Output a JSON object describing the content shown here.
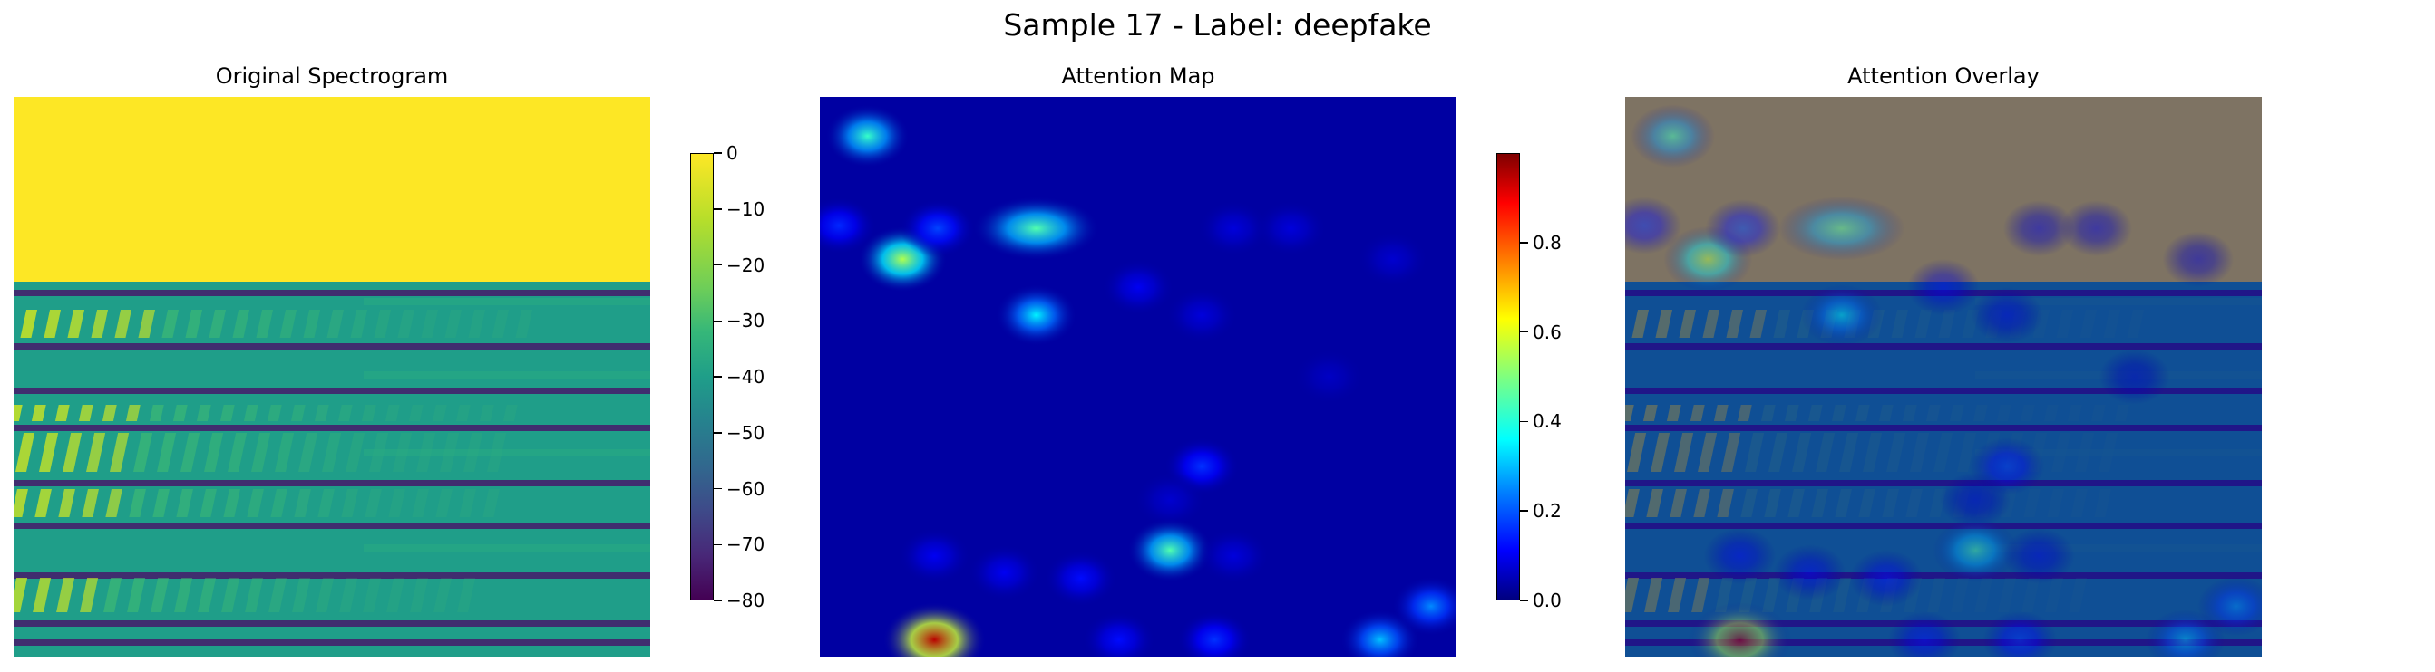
{
  "figure": {
    "title": "Sample 17 - Label: deepfake"
  },
  "panels": [
    {
      "id": "original",
      "title": "Original Spectrogram"
    },
    {
      "id": "attention",
      "title": "Attention Map"
    },
    {
      "id": "overlay",
      "title": "Attention Overlay"
    }
  ],
  "colorbars": {
    "spectrogram": {
      "colormap": "viridis",
      "range": [
        -80,
        0
      ],
      "ticks": [
        "0",
        "−10",
        "−20",
        "−30",
        "−40",
        "−50",
        "−60",
        "−70",
        "−80"
      ],
      "tick_values": [
        0,
        -10,
        -20,
        -30,
        -40,
        -50,
        -60,
        -70,
        -80
      ]
    },
    "attention": {
      "colormap": "jet",
      "range": [
        0,
        1
      ],
      "ticks": [
        "0.0",
        "0.2",
        "0.4",
        "0.6",
        "0.8"
      ],
      "tick_values": [
        0.0,
        0.2,
        0.4,
        0.6,
        0.8
      ]
    }
  },
  "chart_data": [
    {
      "type": "heatmap",
      "title": "Original Spectrogram",
      "colormap": "viridis",
      "value_range": [
        -80,
        0
      ],
      "description_values": {
        "top_region_value": 0,
        "background_value": -40,
        "bright_bands_value": -10,
        "dark_lines_value": -75
      }
    },
    {
      "type": "heatmap",
      "title": "Attention Map",
      "colormap": "jet",
      "value_range": [
        0,
        1
      ],
      "background_value": 0.03,
      "hotspots": [
        {
          "x": 0.075,
          "y": 0.07,
          "value": 0.42
        },
        {
          "x": 0.03,
          "y": 0.23,
          "value": 0.15
        },
        {
          "x": 0.13,
          "y": 0.29,
          "value": 0.55
        },
        {
          "x": 0.185,
          "y": 0.235,
          "value": 0.18
        },
        {
          "x": 0.34,
          "y": 0.235,
          "value": 0.45
        },
        {
          "x": 0.34,
          "y": 0.39,
          "value": 0.35
        },
        {
          "x": 0.5,
          "y": 0.34,
          "value": 0.1
        },
        {
          "x": 0.6,
          "y": 0.39,
          "value": 0.08
        },
        {
          "x": 0.65,
          "y": 0.235,
          "value": 0.08
        },
        {
          "x": 0.74,
          "y": 0.235,
          "value": 0.08
        },
        {
          "x": 0.9,
          "y": 0.29,
          "value": 0.07
        },
        {
          "x": 0.8,
          "y": 0.5,
          "value": 0.06
        },
        {
          "x": 0.6,
          "y": 0.66,
          "value": 0.16
        },
        {
          "x": 0.55,
          "y": 0.72,
          "value": 0.07
        },
        {
          "x": 0.18,
          "y": 0.82,
          "value": 0.1
        },
        {
          "x": 0.29,
          "y": 0.85,
          "value": 0.1
        },
        {
          "x": 0.41,
          "y": 0.86,
          "value": 0.12
        },
        {
          "x": 0.55,
          "y": 0.81,
          "value": 0.45
        },
        {
          "x": 0.65,
          "y": 0.82,
          "value": 0.08
        },
        {
          "x": 0.18,
          "y": 0.97,
          "value": 0.95
        },
        {
          "x": 0.47,
          "y": 0.97,
          "value": 0.12
        },
        {
          "x": 0.62,
          "y": 0.97,
          "value": 0.16
        },
        {
          "x": 0.88,
          "y": 0.97,
          "value": 0.3
        },
        {
          "x": 0.96,
          "y": 0.91,
          "value": 0.25
        }
      ]
    },
    {
      "type": "heatmap",
      "title": "Attention Overlay",
      "colormap": "jet over viridis"
    }
  ]
}
